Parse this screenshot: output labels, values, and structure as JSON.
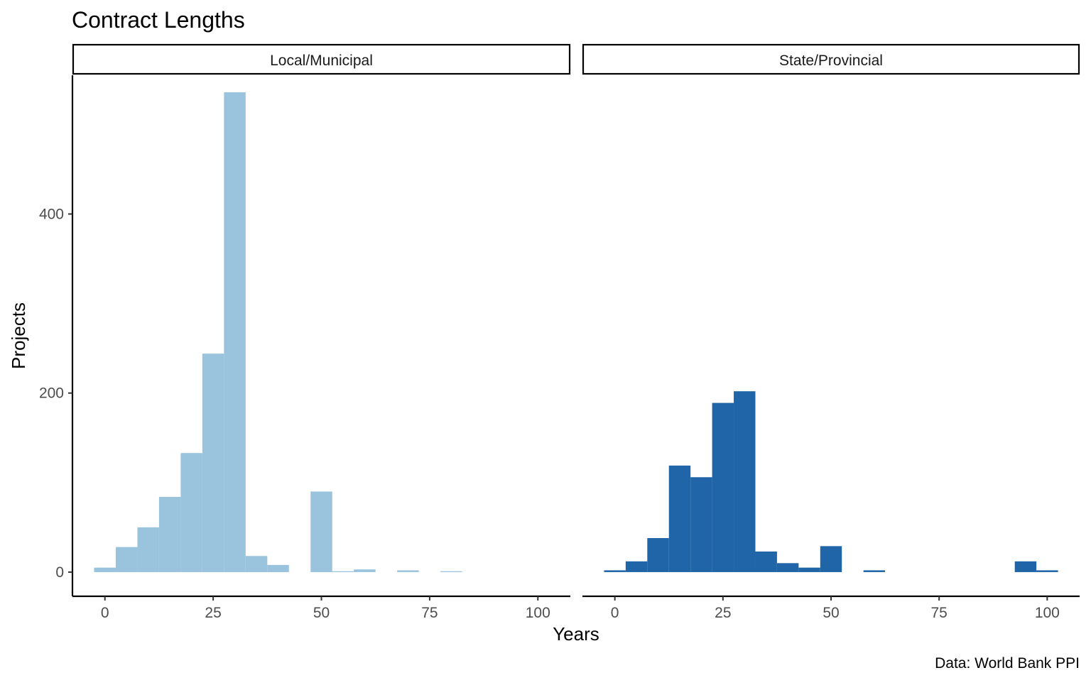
{
  "chart_data": {
    "type": "bar",
    "title": "Contract Lengths",
    "xlabel": "Years",
    "ylabel": "Projects",
    "caption": "Data: World Bank PPI",
    "xlim": [
      -7.5,
      107.5
    ],
    "ylim": [
      -27,
      555
    ],
    "x_ticks": [
      0,
      25,
      50,
      75,
      100
    ],
    "y_ticks": [
      0,
      200,
      400
    ],
    "bin_width": 5,
    "grid": false,
    "panels": [
      {
        "name": "Local/Municipal",
        "color": "#9ac4dd",
        "bins": [
          {
            "x": 0,
            "count": 5
          },
          {
            "x": 5,
            "count": 28
          },
          {
            "x": 10,
            "count": 50
          },
          {
            "x": 15,
            "count": 84
          },
          {
            "x": 20,
            "count": 133
          },
          {
            "x": 25,
            "count": 244
          },
          {
            "x": 30,
            "count": 536
          },
          {
            "x": 35,
            "count": 18
          },
          {
            "x": 40,
            "count": 8
          },
          {
            "x": 50,
            "count": 90
          },
          {
            "x": 55,
            "count": 1
          },
          {
            "x": 60,
            "count": 3
          },
          {
            "x": 70,
            "count": 2
          },
          {
            "x": 80,
            "count": 1
          }
        ]
      },
      {
        "name": "State/Provincial",
        "color": "#1f65a8",
        "bins": [
          {
            "x": 0,
            "count": 2
          },
          {
            "x": 5,
            "count": 12
          },
          {
            "x": 10,
            "count": 38
          },
          {
            "x": 15,
            "count": 119
          },
          {
            "x": 20,
            "count": 106
          },
          {
            "x": 25,
            "count": 189
          },
          {
            "x": 30,
            "count": 202
          },
          {
            "x": 35,
            "count": 23
          },
          {
            "x": 40,
            "count": 10
          },
          {
            "x": 45,
            "count": 5
          },
          {
            "x": 50,
            "count": 29
          },
          {
            "x": 60,
            "count": 2
          },
          {
            "x": 95,
            "count": 12
          },
          {
            "x": 100,
            "count": 2
          }
        ]
      }
    ]
  }
}
